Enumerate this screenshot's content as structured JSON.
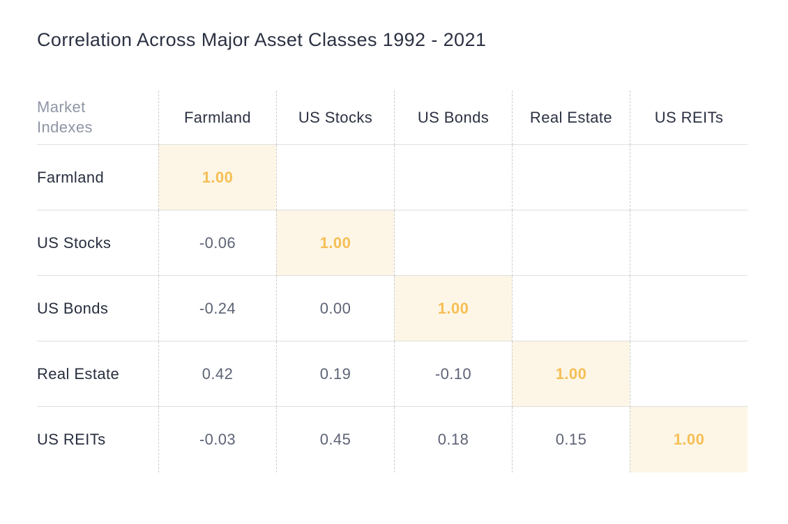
{
  "title": "Correlation Across Major Asset Classes 1992 - 2021",
  "table": {
    "corner_label": "Market Indexes",
    "columns": [
      "Farmland",
      "US Stocks",
      "US Bonds",
      "Real Estate",
      "US REITs"
    ],
    "rows": [
      {
        "label": "Farmland",
        "values": [
          "1.00",
          "",
          "",
          "",
          ""
        ]
      },
      {
        "label": "US Stocks",
        "values": [
          "-0.06",
          "1.00",
          "",
          "",
          ""
        ]
      },
      {
        "label": "US Bonds",
        "values": [
          "-0.24",
          "0.00",
          "1.00",
          "",
          ""
        ]
      },
      {
        "label": "Real Estate",
        "values": [
          "0.42",
          "0.19",
          "-0.10",
          "1.00",
          ""
        ]
      },
      {
        "label": "US REITs",
        "values": [
          "-0.03",
          "0.45",
          "0.18",
          "0.15",
          "1.00"
        ]
      }
    ]
  },
  "colors": {
    "title_text": "#2b3142",
    "corner_text": "#8f95a5",
    "value_text": "#5d6375",
    "highlight_background": "#fdf6e6",
    "highlight_text": "#f6be55",
    "row_separator": "#dedede",
    "column_separator_dashed": "#cccccc",
    "page_background": "#ffffff"
  },
  "chart_data": {
    "type": "heatmap",
    "title": "Correlation Across Major Asset Classes 1992 - 2021",
    "x_categories": [
      "Farmland",
      "US Stocks",
      "US Bonds",
      "Real Estate",
      "US REITs"
    ],
    "y_categories": [
      "Farmland",
      "US Stocks",
      "US Bonds",
      "Real Estate",
      "US REITs"
    ],
    "matrix": [
      [
        1.0,
        null,
        null,
        null,
        null
      ],
      [
        -0.06,
        1.0,
        null,
        null,
        null
      ],
      [
        -0.24,
        0.0,
        1.0,
        null,
        null
      ],
      [
        0.42,
        0.19,
        -0.1,
        1.0,
        null
      ],
      [
        -0.03,
        0.45,
        0.18,
        0.15,
        1.0
      ]
    ],
    "layout": "lower-triangular matrix, diagonal cells highlighted in cream with orange bold 1.00, dashed column separators, solid light-grey row separators, grid on for rows only"
  }
}
